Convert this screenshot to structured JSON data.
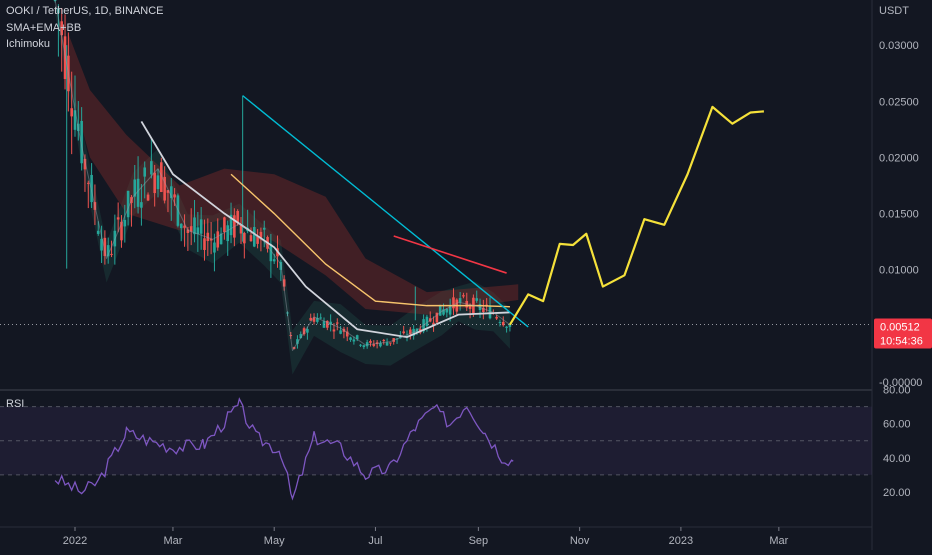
{
  "header": {
    "symbol_line": "OOKI / TetherUS, 1D, BINANCE",
    "indicator_1": "SMA+EMA+BB",
    "indicator_2": "Ichimoku"
  },
  "rsi_panel": {
    "label": "RSI"
  },
  "price_axis": {
    "unit": "USDT",
    "ticks": [
      "0.03000",
      "0.02500",
      "0.02000",
      "0.01500",
      "0.01000",
      "0.00500",
      "-0.00000"
    ]
  },
  "last_price": {
    "value": "0.00512",
    "countdown": "10:54:36",
    "color": "#f23645"
  },
  "rsi_axis": {
    "ticks": [
      "80.00",
      "60.00",
      "40.00",
      "20.00"
    ]
  },
  "time_axis": {
    "labels": [
      "2022",
      "Mar",
      "May",
      "Jul",
      "Sep",
      "Nov",
      "2023",
      "Mar"
    ]
  },
  "colors": {
    "background": "#131722",
    "candle_up": "#26a69a",
    "candle_down": "#ef5350",
    "trendline": "#00bcd4",
    "projection": "#f5e13a",
    "rsi_line": "#7e57c2",
    "sma": "#d1d4dc",
    "ema": "#f7c46c",
    "resistance": "#f23645"
  },
  "chart_data": {
    "type": "line",
    "title": "OOKI / TetherUS, 1D, BINANCE",
    "xlabel": "",
    "ylabel": "USDT",
    "ylim": [
      0,
      0.032
    ],
    "grid": false,
    "series": [
      {
        "name": "",
        "x": [
          "2021-12-20",
          "2022-01-05",
          "2022-01-20",
          "2022-02-05",
          "2022-02-20",
          "2022-03-10",
          "2022-03-25",
          "2022-04-10",
          "2022-04-25",
          "2022-05-05",
          "2022-05-12",
          "2022-05-25",
          "2022-06-10",
          "2022-06-25",
          "2022-07-10",
          "2022-07-25",
          "2022-08-10",
          "2022-08-20",
          "2022-08-30",
          "2022-09-10",
          "2022-09-20"
        ],
        "values": [
          0.035,
          0.021,
          0.011,
          0.0165,
          0.019,
          0.0135,
          0.0127,
          0.0141,
          0.0125,
          0.0105,
          0.0028,
          0.0058,
          0.0048,
          0.0033,
          0.0036,
          0.0045,
          0.0063,
          0.0071,
          0.0068,
          0.0062,
          0.0051
        ]
      },
      {
        "name": "",
        "x": [
          "2022-09-20",
          "2022-10-01",
          "2022-10-10",
          "2022-10-20",
          "2022-10-28",
          "2022-11-05",
          "2022-11-15",
          "2022-11-28",
          "2022-12-10",
          "2022-12-22",
          "2023-01-05",
          "2023-01-20",
          "2023-02-01",
          "2023-02-12",
          "2023-02-20"
        ],
        "values": [
          0.0051,
          0.0078,
          0.0072,
          0.0123,
          0.0122,
          0.0132,
          0.0085,
          0.0095,
          0.0145,
          0.014,
          0.0185,
          0.0245,
          0.023,
          0.024,
          0.0241
        ]
      }
    ],
    "rsi": {
      "ylim": [
        10,
        85
      ],
      "bands": [
        30,
        50,
        70
      ],
      "x": [
        "2021-12-20",
        "2022-01-05",
        "2022-01-15",
        "2022-02-01",
        "2022-02-15",
        "2022-03-01",
        "2022-03-20",
        "2022-04-10",
        "2022-04-20",
        "2022-05-05",
        "2022-05-12",
        "2022-05-25",
        "2022-06-10",
        "2022-06-25",
        "2022-07-10",
        "2022-07-25",
        "2022-08-05",
        "2022-08-15",
        "2022-08-25",
        "2022-09-05",
        "2022-09-15",
        "2022-09-22"
      ],
      "values": [
        28,
        20,
        26,
        55,
        50,
        46,
        48,
        71,
        52,
        44,
        15,
        52,
        46,
        30,
        34,
        58,
        69,
        60,
        72,
        55,
        41,
        38
      ]
    }
  }
}
